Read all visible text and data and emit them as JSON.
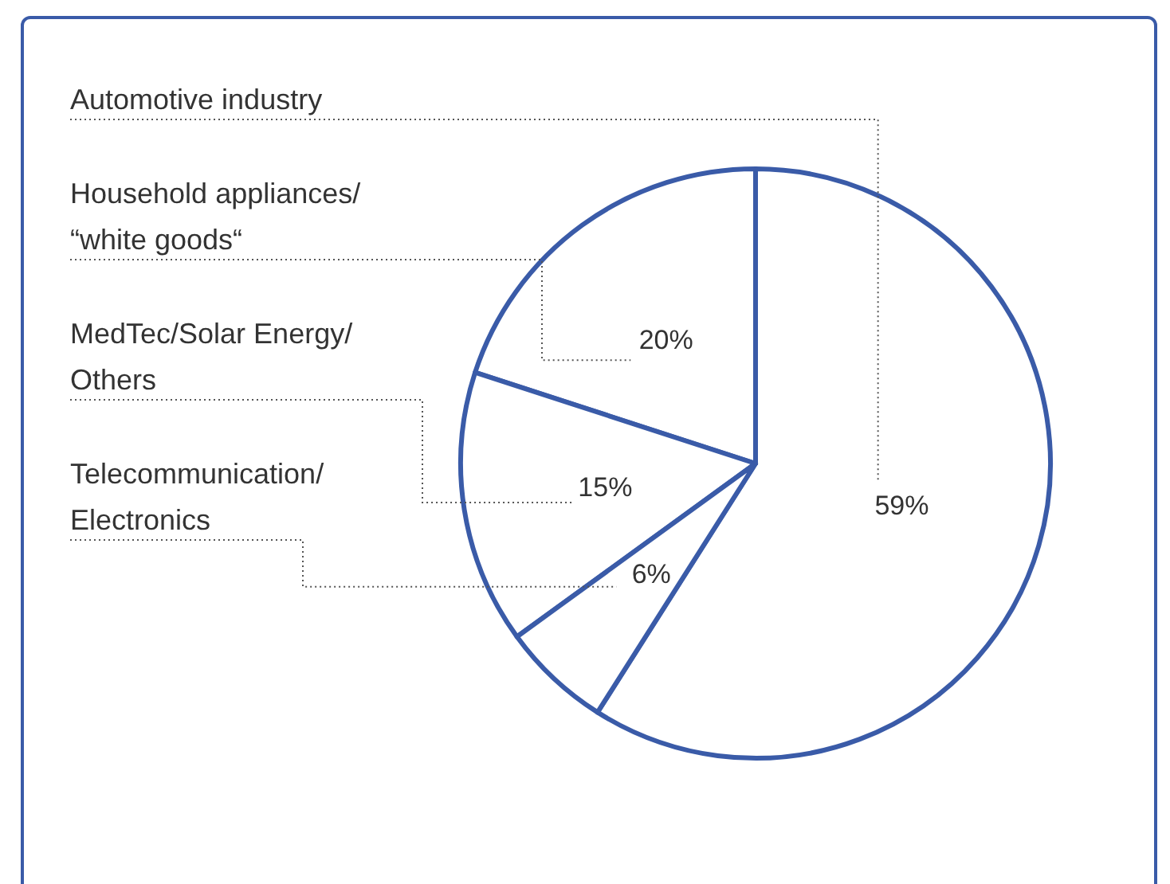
{
  "chart_data": {
    "type": "pie",
    "categories": [
      "Automotive industry",
      "Household appliances/\n“white goods“",
      "MedTec/Solar Energy/\nOthers",
      "Telecommunication/\nElectronics"
    ],
    "values": [
      59,
      20,
      15,
      6
    ],
    "colors": [
      "#ffffff",
      "#ffffff",
      "#ffffff",
      "#ffffff"
    ],
    "value_labels": [
      "59%",
      "20%",
      "15%",
      "6%"
    ],
    "legend": false
  }
}
